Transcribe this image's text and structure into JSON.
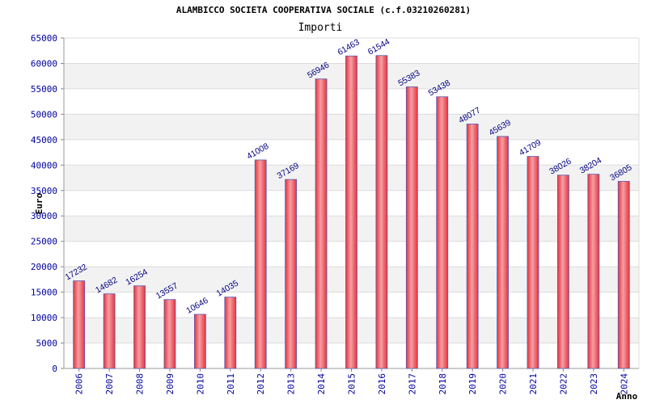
{
  "chart_data": {
    "type": "bar",
    "title": "ALAMBICCO SOCIETA COOPERATIVA SOCIALE (c.f.03210260281)",
    "subtitle": "Importi",
    "ylabel": "Euro",
    "xlabel": "Anno",
    "ylim": [
      0,
      65000
    ],
    "ytick_step": 5000,
    "grid": true,
    "categories": [
      "2006",
      "2007",
      "2008",
      "2009",
      "2010",
      "2011",
      "2012",
      "2013",
      "2014",
      "2015",
      "2016",
      "2017",
      "2018",
      "2019",
      "2020",
      "2021",
      "2022",
      "2023",
      "2024"
    ],
    "values": [
      17232,
      14682,
      16254,
      13557,
      10646,
      14035,
      41008,
      37169,
      56946,
      61463,
      61544,
      55383,
      53438,
      48077,
      45639,
      41709,
      38026,
      38204,
      36805
    ],
    "colors": {
      "bar": "#e8323c",
      "bar_light": "#f4a0a4",
      "bar_border": "#5a5ab4",
      "tick_text": "#0000a0",
      "label_text": "#000080",
      "band": "#f2f2f2",
      "grid": "#dcdcdc",
      "text": "#000000"
    }
  }
}
